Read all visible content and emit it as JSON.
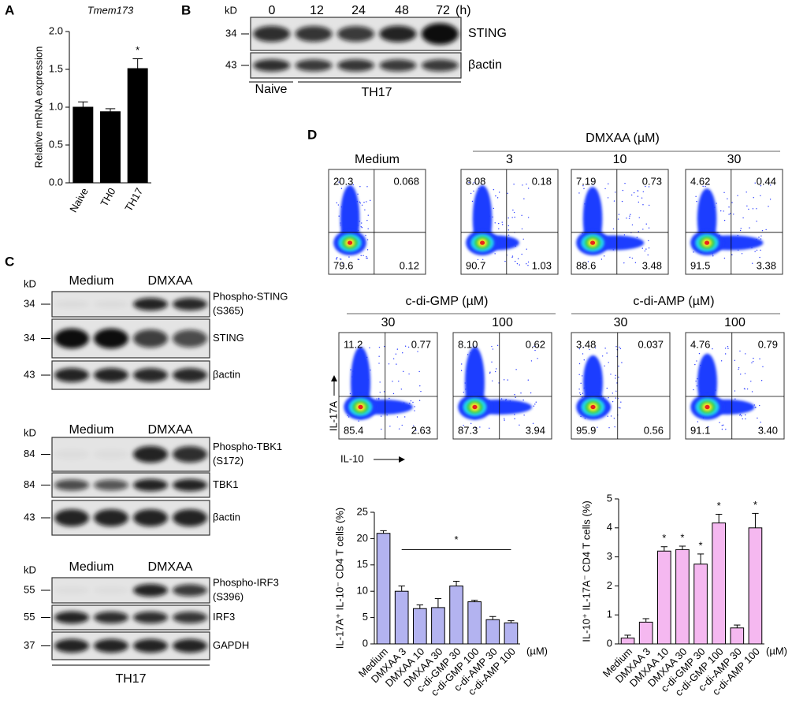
{
  "panel_labels": [
    "A",
    "B",
    "C",
    "D"
  ],
  "chart_data": [
    {
      "type": "bar",
      "title": "Tmem173",
      "ylabel": "Relative mRNA expression",
      "categories": [
        "Naive",
        "TH0",
        "TH17"
      ],
      "values": [
        1.0,
        0.94,
        1.51
      ],
      "errors": [
        0.07,
        0.04,
        0.13
      ],
      "color": "#000000",
      "ylim": [
        0,
        2
      ],
      "yticks": [
        {
          "value": 0,
          "label": "0.0"
        },
        {
          "value": 0.5,
          "label": "0.5"
        },
        {
          "value": 1,
          "label": "1.0"
        },
        {
          "value": 1.5,
          "label": "1.5"
        },
        {
          "value": 2,
          "label": "2.0"
        }
      ],
      "annotations": [
        {
          "text": "*",
          "category": "TH17"
        }
      ]
    },
    {
      "type": "bar",
      "ylabel": "IL-17A⁺ IL-10⁻ CD4 T cells (%)",
      "categories": [
        "Medium",
        "DMXAA 3",
        "DMXAA 10",
        "DMXAA 30",
        "c-di-GMP 30",
        "c-di-GMP 100",
        "c-di-AMP 30",
        "c-di-AMP 100"
      ],
      "values": [
        21,
        10,
        6.7,
        6.9,
        11,
        8,
        4.6,
        4
      ],
      "errors": [
        0.5,
        1,
        0.7,
        1.7,
        0.9,
        0.3,
        0.6,
        0.4
      ],
      "color": "#b3b3f0",
      "ylim": [
        0,
        25
      ],
      "yticks": [
        0,
        5,
        10,
        15,
        20,
        25
      ],
      "x_unit": "(µM)",
      "annotations": [
        {
          "text": "*",
          "from": "DMXAA 3",
          "to": "c-di-AMP 100"
        }
      ]
    },
    {
      "type": "bar",
      "ylabel": "IL-10⁺ IL-17A⁻ CD4 T cells (%)",
      "categories": [
        "Medium",
        "DMXAA 3",
        "DMXAA 10",
        "DMXAA 30",
        "c-di-GMP 30",
        "c-di-GMP 100",
        "c-di-AMP 30",
        "c-di-AMP 100"
      ],
      "values": [
        0.2,
        0.75,
        3.2,
        3.25,
        2.75,
        4.17,
        0.55,
        4.0
      ],
      "errors": [
        0.1,
        0.12,
        0.15,
        0.12,
        0.35,
        0.3,
        0.1,
        0.5
      ],
      "color": "#f5b8f0",
      "ylim": [
        0,
        5
      ],
      "yticks": [
        0,
        1,
        2,
        3,
        4,
        5
      ],
      "x_unit": "(µM)",
      "annotations": [
        {
          "text": "*",
          "category": "DMXAA 10"
        },
        {
          "text": "*",
          "category": "DMXAA 30"
        },
        {
          "text": "*",
          "category": "c-di-GMP 30"
        },
        {
          "text": "*",
          "category": "c-di-GMP 100"
        },
        {
          "text": "*",
          "category": "c-di-AMP 100"
        }
      ]
    }
  ],
  "blot_b": {
    "kd_label": "kD",
    "lanes": [
      "0",
      "12",
      "24",
      "48",
      "72"
    ],
    "lane_unit": "(h)",
    "rows": [
      {
        "kd": "34",
        "label": "STING"
      },
      {
        "kd": "43",
        "label": "βactin"
      }
    ],
    "groups": [
      "Naive",
      "TH17"
    ]
  },
  "blot_c": {
    "groups": [
      {
        "kd_label": "kD",
        "headers": [
          "Medium",
          "DMXAA"
        ],
        "rows": [
          {
            "kd": "34",
            "label": "Phospho-STING",
            "site": "(S365)"
          },
          {
            "kd": "34",
            "label": "STING"
          },
          {
            "kd": "43",
            "label": "βactin"
          }
        ]
      },
      {
        "kd_label": "kD",
        "headers": [
          "Medium",
          "DMXAA"
        ],
        "rows": [
          {
            "kd": "84",
            "label": "Phospho-TBK1",
            "site": "(S172)"
          },
          {
            "kd": "84",
            "label": "TBK1"
          },
          {
            "kd": "43",
            "label": "βactin"
          }
        ]
      },
      {
        "kd_label": "kD",
        "headers": [
          "Medium",
          "DMXAA"
        ],
        "rows": [
          {
            "kd": "55",
            "label": "Phospho-IRF3",
            "site": "(S396)"
          },
          {
            "kd": "55",
            "label": "IRF3"
          },
          {
            "kd": "37",
            "label": "GAPDH"
          }
        ]
      }
    ],
    "footer": "TH17"
  },
  "flow": {
    "y_label": "IL-17A",
    "x_label": "IL-10",
    "medium": {
      "title": "Medium",
      "quadrants": [
        "20.3",
        "0.068",
        "79.6",
        "0.12"
      ]
    },
    "groups": [
      {
        "name": "DMXAA (µM)",
        "plots": [
          {
            "title": "3",
            "quadrants": [
              "8.08",
              "0.18",
              "90.7",
              "1.03"
            ]
          },
          {
            "title": "10",
            "quadrants": [
              "7.19",
              "0.73",
              "88.6",
              "3.48"
            ]
          },
          {
            "title": "30",
            "quadrants": [
              "4.62",
              "0.44",
              "91.5",
              "3.38"
            ]
          }
        ]
      },
      {
        "name": "c-di-GMP (µM)",
        "plots": [
          {
            "title": "30",
            "quadrants": [
              "11.2",
              "0.77",
              "85.4",
              "2.63"
            ]
          },
          {
            "title": "100",
            "quadrants": [
              "8.10",
              "0.62",
              "87.3",
              "3.94"
            ]
          }
        ]
      },
      {
        "name": "c-di-AMP (µM)",
        "plots": [
          {
            "title": "30",
            "quadrants": [
              "3.48",
              "0.037",
              "95.9",
              "0.56"
            ]
          },
          {
            "title": "100",
            "quadrants": [
              "4.76",
              "0.79",
              "91.1",
              "3.40"
            ]
          }
        ]
      }
    ]
  }
}
